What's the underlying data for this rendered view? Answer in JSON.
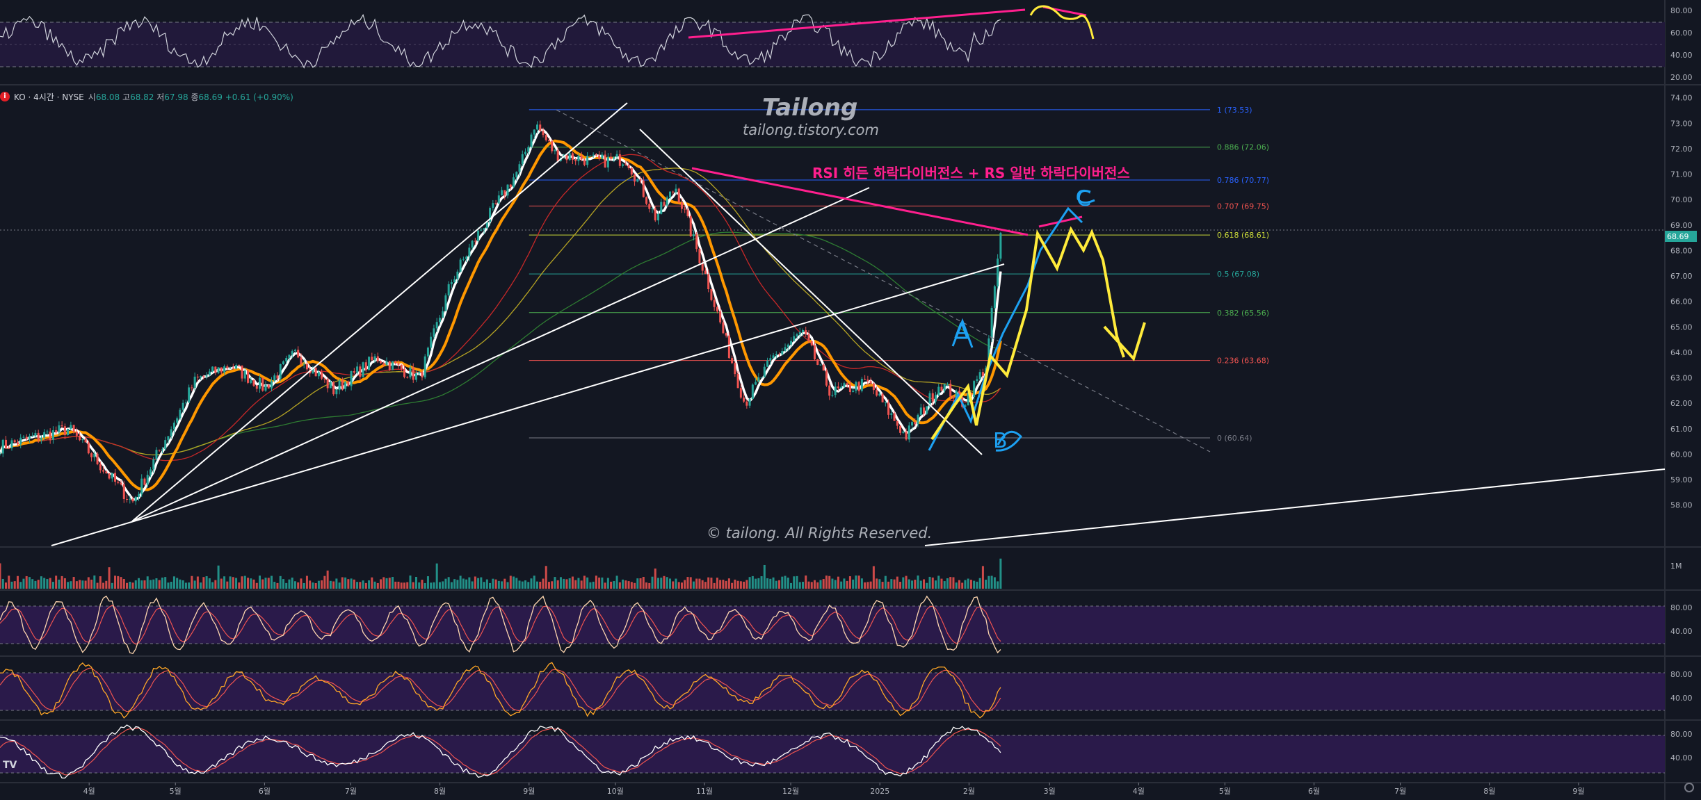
{
  "legend": {
    "symbol": "KO · 4시간 · NYSE",
    "open_key": "시",
    "open": "68.08",
    "high_key": "고",
    "high": "68.82",
    "low_key": "저",
    "low": "67.98",
    "close_key": "종",
    "close": "68.69",
    "change": "+0.61 (+0.90%)"
  },
  "watermark": {
    "title": "Tailong",
    "site": "tailong.tistory.com",
    "copyright": "© tailong. All Rights Reserved."
  },
  "annotation": {
    "divergence": "RSI 히든 하락다이버전스 + RS 일반 하락다이버전스",
    "wave_a": "A",
    "wave_b": "B",
    "wave_c": "C"
  },
  "price_tag": "68.69",
  "colors": {
    "bg": "#131722",
    "up": "#26a69a",
    "down": "#ef5350",
    "panel_fill": "#2a1a4a",
    "magenta": "#ff1f8e",
    "yellow": "#ffeb3b",
    "cyan": "#1da1f2",
    "orange": "#ff9800"
  },
  "chart_data": [
    {
      "type": "line",
      "panel": "price",
      "title": "KO · 4시간 · NYSE",
      "xlabel": "",
      "ylabel": "",
      "grid": false,
      "y_scale": "linear",
      "ylim": [
        57.2,
        74.4
      ],
      "x_ticks": [
        "4월",
        "5월",
        "6월",
        "7월",
        "8월",
        "9월",
        "10월",
        "11월",
        "12월",
        "2025",
        "2월",
        "3월",
        "4월",
        "5월",
        "6월",
        "7월",
        "8월",
        "9월"
      ],
      "y_ticks": [
        58.0,
        59.0,
        60.0,
        61.0,
        62.0,
        63.0,
        64.0,
        65.0,
        66.0,
        67.0,
        68.0,
        69.0,
        70.0,
        71.0,
        72.0,
        73.0,
        74.0
      ],
      "price_pivots": [
        {
          "x": "2024-03",
          "y": 60.3
        },
        {
          "x": "2024-03-25",
          "y": 61.0
        },
        {
          "x": "2024-04-16",
          "y": 58.1
        },
        {
          "x": "2024-05-08",
          "y": 62.9
        },
        {
          "x": "2024-05-20",
          "y": 63.5
        },
        {
          "x": "2024-06-01",
          "y": 62.6
        },
        {
          "x": "2024-06-12",
          "y": 64.0
        },
        {
          "x": "2024-06-25",
          "y": 62.5
        },
        {
          "x": "2024-07-10",
          "y": 63.8
        },
        {
          "x": "2024-07-25",
          "y": 63.0
        },
        {
          "x": "2024-08-05",
          "y": 66.8
        },
        {
          "x": "2024-08-15",
          "y": 68.8
        },
        {
          "x": "2024-08-29",
          "y": 71.3
        },
        {
          "x": "2024-09-03",
          "y": 73.0
        },
        {
          "x": "2024-09-10",
          "y": 71.8
        },
        {
          "x": "2024-09-25",
          "y": 71.5
        },
        {
          "x": "2024-10-05",
          "y": 71.6
        },
        {
          "x": "2024-10-15",
          "y": 69.3
        },
        {
          "x": "2024-10-22",
          "y": 70.5
        },
        {
          "x": "2024-11-02",
          "y": 66.8
        },
        {
          "x": "2024-11-15",
          "y": 62.0
        },
        {
          "x": "2024-11-25",
          "y": 63.8
        },
        {
          "x": "2024-12-05",
          "y": 64.8
        },
        {
          "x": "2024-12-15",
          "y": 62.4
        },
        {
          "x": "2024-12-28",
          "y": 62.8
        },
        {
          "x": "2025-01-10",
          "y": 60.7
        },
        {
          "x": "2025-01-22",
          "y": 62.8
        },
        {
          "x": "2025-01-30",
          "y": 62.0
        },
        {
          "x": "2025-02-07",
          "y": 63.5
        },
        {
          "x": "2025-02-12",
          "y": 68.7
        }
      ],
      "fibonacci": [
        {
          "level": "1",
          "price": 73.53
        },
        {
          "level": "0.886",
          "price": 72.06
        },
        {
          "level": "0.786",
          "price": 70.77
        },
        {
          "level": "0.707",
          "price": 69.75
        },
        {
          "level": "0.618",
          "price": 68.61
        },
        {
          "level": "0.5",
          "price": 67.08
        },
        {
          "level": "0.382",
          "price": 65.56
        },
        {
          "level": "0.236",
          "price": 63.68
        },
        {
          "level": "0",
          "price": 60.64
        }
      ],
      "fib_labels": [
        "1 (73.53)",
        "0.886 (72.06)",
        "0.786 (70.77)",
        "0.707 (69.75)",
        "0.618 (68.61)",
        "0.5 (67.08)",
        "0.382 (65.56)",
        "0.236 (63.68)",
        "0 (60.64)"
      ],
      "last_price": 68.69
    },
    {
      "type": "line",
      "panel": "rsi",
      "xlabel": "",
      "ylabel": "",
      "ylim": [
        15,
        85
      ],
      "y_ticks": [
        20.0,
        40.0,
        60.0,
        80.0
      ],
      "band": [
        30,
        70
      ]
    },
    {
      "type": "bar",
      "panel": "volume",
      "xlabel": "",
      "ylabel": "",
      "y_ticks": [
        "1M"
      ]
    },
    {
      "type": "line",
      "panel": "oscillator_1",
      "ylim": [
        0,
        100
      ],
      "y_ticks": [
        40.0,
        80.0
      ]
    },
    {
      "type": "line",
      "panel": "oscillator_2",
      "ylim": [
        0,
        100
      ],
      "y_ticks": [
        40.0,
        80.0
      ]
    },
    {
      "type": "line",
      "panel": "oscillator_3",
      "ylim": [
        0,
        100
      ],
      "y_ticks": [
        40.0,
        80.0
      ]
    }
  ]
}
